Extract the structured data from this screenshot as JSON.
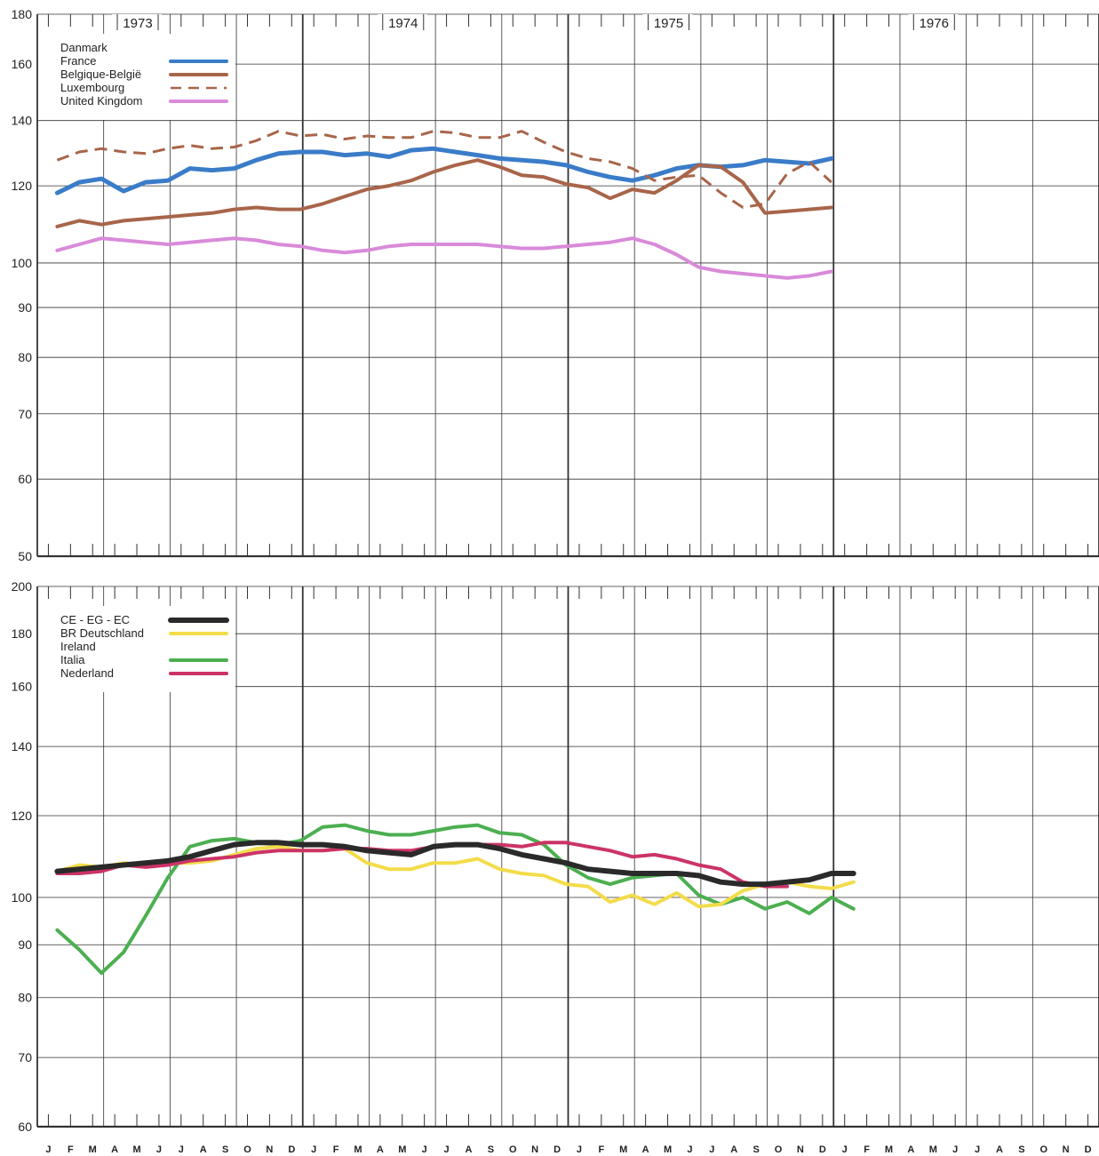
{
  "chart_data": [
    {
      "id": "top",
      "type": "line",
      "title": "",
      "xlabel": "",
      "ylabel": "",
      "yscale": "log",
      "ylim": [
        50,
        180
      ],
      "yticks": [
        50,
        60,
        70,
        80,
        90,
        100,
        120,
        140,
        160,
        180
      ],
      "x_years": [
        "1973",
        "1974",
        "1975",
        "1976"
      ],
      "legend_position": "top-left",
      "legend": [
        {
          "label": "Danmark",
          "style": "none"
        },
        {
          "label": "France",
          "style": "solid",
          "color": "#3a7cc8"
        },
        {
          "label": "Belgique-België",
          "style": "solid",
          "color": "#a8654a"
        },
        {
          "label": "Luxembourg",
          "style": "dashed",
          "color": "#a8654a"
        },
        {
          "label": "United Kingdom",
          "style": "solid",
          "color": "#d98ad9"
        }
      ],
      "series": [
        {
          "name": "France",
          "color": "#3a7cc8",
          "dashed": false,
          "width": 5,
          "start_index": 0,
          "values": [
            118,
            121,
            122,
            118.5,
            121,
            121.5,
            125,
            124.5,
            125,
            127.5,
            129.5,
            130,
            130,
            129,
            129.5,
            128.5,
            130.5,
            131,
            130,
            129,
            128,
            127.5,
            127,
            126,
            124,
            122.5,
            121.5,
            123,
            125,
            126,
            125.5,
            126,
            127.5,
            127,
            126.5,
            128
          ]
        },
        {
          "name": "Belgique-België",
          "color": "#a8654a",
          "dashed": false,
          "width": 4,
          "start_index": 0,
          "values": [
            109,
            110.5,
            109.5,
            110.5,
            111,
            111.5,
            112,
            112.5,
            113.5,
            114,
            113.5,
            113.5,
            115,
            117,
            119,
            120,
            121.5,
            124,
            126,
            127.5,
            125.5,
            123,
            122.5,
            120.5,
            119.5,
            116.5,
            119,
            118,
            121.5,
            126,
            125.5,
            121,
            112.5,
            113,
            113.5,
            114
          ]
        },
        {
          "name": "Luxembourg",
          "color": "#a8654a",
          "dashed": true,
          "width": 3,
          "start_index": 0,
          "values": [
            127.5,
            130,
            131,
            130,
            129.5,
            131,
            132,
            131,
            131.5,
            133.5,
            136.5,
            135,
            135.5,
            134,
            135,
            134.5,
            134.5,
            136.5,
            136,
            134.5,
            134.5,
            136.5,
            133,
            130,
            128,
            127,
            125,
            121.5,
            122.5,
            123,
            118,
            114,
            115,
            123.5,
            127,
            121
          ]
        },
        {
          "name": "United Kingdom",
          "color": "#d98ad9",
          "dashed": false,
          "width": 4,
          "start_index": 0,
          "values": [
            103,
            104.5,
            106,
            105.5,
            105,
            104.5,
            105,
            105.5,
            106,
            105.5,
            104.5,
            104,
            103,
            102.5,
            103,
            104,
            104.5,
            104.5,
            104.5,
            104.5,
            104,
            103.5,
            103.5,
            104,
            104.5,
            105,
            106,
            104.5,
            102,
            99,
            98,
            97.5,
            97,
            96.5,
            97,
            98
          ]
        }
      ]
    },
    {
      "id": "bottom",
      "type": "line",
      "title": "",
      "xlabel": "",
      "ylabel": "",
      "yscale": "log",
      "ylim": [
        60,
        200
      ],
      "yticks": [
        60,
        70,
        80,
        90,
        100,
        120,
        140,
        160,
        180,
        200
      ],
      "x_tick_labels": [
        "J",
        "F",
        "M",
        "A",
        "M",
        "J",
        "J",
        "A",
        "S",
        "O",
        "N",
        "D",
        "J",
        "F",
        "M",
        "A",
        "M",
        "J",
        "J",
        "A",
        "S",
        "O",
        "N",
        "D",
        "J",
        "F",
        "M",
        "A",
        "M",
        "J",
        "J",
        "A",
        "S",
        "O",
        "N",
        "D",
        "J",
        "F",
        "M",
        "A",
        "M",
        "J",
        "J",
        "A",
        "S",
        "O",
        "N",
        "D"
      ],
      "legend_position": "top-left",
      "legend": [
        {
          "label": "CE - EG - EC",
          "style": "solid",
          "color": "#2a2a2a"
        },
        {
          "label": "BR Deutschland",
          "style": "solid",
          "color": "#f3dc4a"
        },
        {
          "label": "Ireland",
          "style": "none"
        },
        {
          "label": "Italia",
          "style": "solid",
          "color": "#4caf50"
        },
        {
          "label": "Nederland",
          "style": "solid",
          "color": "#cc3366"
        }
      ],
      "series": [
        {
          "name": "Italia",
          "color": "#4caf50",
          "dashed": false,
          "width": 4,
          "start_index": 0,
          "values": [
            93,
            89,
            84.5,
            88.5,
            96,
            104.5,
            112,
            113.5,
            114,
            113,
            112.5,
            113.5,
            117,
            117.5,
            116,
            115,
            115,
            116,
            117,
            117.5,
            115.5,
            115,
            112.5,
            107.5,
            104.5,
            103,
            104.5,
            105,
            105.5,
            100.5,
            98.5,
            100,
            97.5,
            99,
            96.5,
            100,
            97.5
          ]
        },
        {
          "name": "BR Deutschland",
          "color": "#f3dc4a",
          "dashed": false,
          "width": 4,
          "start_index": 0,
          "values": [
            106,
            107.5,
            107,
            108,
            107.5,
            108,
            108,
            108.5,
            110,
            111.5,
            112,
            111,
            111,
            111.5,
            108,
            106.5,
            106.5,
            108,
            108,
            109,
            106.5,
            105.5,
            105,
            103,
            102.5,
            99,
            100.5,
            98.5,
            101,
            98,
            98.5,
            101.5,
            103,
            103.5,
            102.5,
            102,
            103.5
          ]
        },
        {
          "name": "Nederland",
          "color": "#cc3366",
          "dashed": false,
          "width": 4,
          "start_index": 0,
          "values": [
            105.5,
            105.5,
            106,
            107.5,
            107,
            107.5,
            108.5,
            109,
            109.5,
            110.5,
            111,
            111,
            111,
            111.5,
            111.5,
            111,
            111,
            112,
            112.5,
            112.5,
            112.5,
            112,
            113,
            113,
            112,
            111,
            109.5,
            110,
            109,
            107.5,
            106.5,
            103.5,
            102.5,
            102.5
          ]
        },
        {
          "name": "CE - EG - EC",
          "color": "#2a2a2a",
          "dashed": false,
          "width": 6,
          "start_index": 0,
          "values": [
            106,
            106.5,
            107,
            107.5,
            108,
            108.5,
            109.5,
            111,
            112.5,
            113,
            113,
            112.5,
            112.5,
            112,
            111,
            110.5,
            110,
            112,
            112.5,
            112.5,
            111.5,
            110,
            109,
            108,
            106.5,
            106,
            105.5,
            105.5,
            105.5,
            105,
            103.5,
            103,
            103,
            103.5,
            104,
            105.5,
            105.5
          ]
        }
      ]
    }
  ]
}
